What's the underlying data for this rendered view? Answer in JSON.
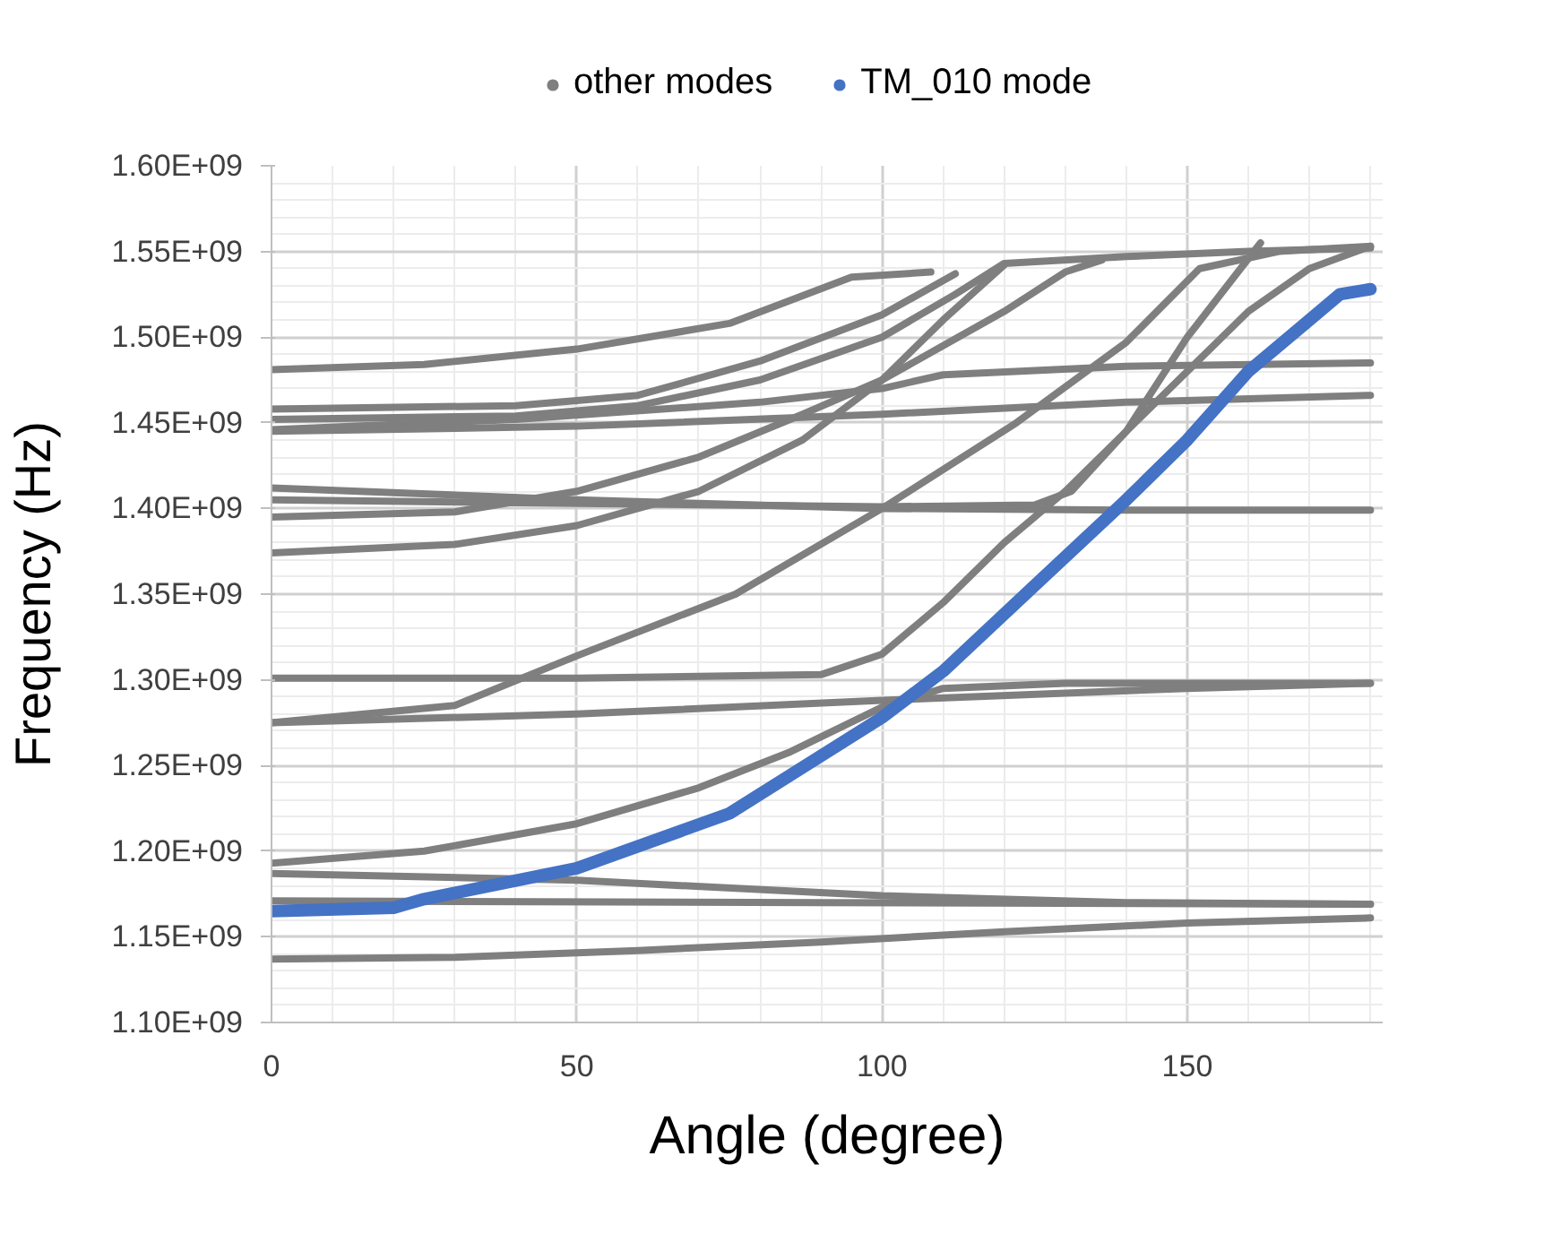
{
  "chart_data": {
    "type": "line",
    "xlabel": "Angle (degree)",
    "ylabel": "Frequency (Hz)",
    "legend": "top",
    "grid": true,
    "xlim": [
      0,
      182
    ],
    "xticks": [
      0,
      50,
      100,
      150
    ],
    "ylim": [
      1100000000,
      1600000000
    ],
    "yticks": [
      {
        "value": 1100000000,
        "label": "1.10E+09"
      },
      {
        "value": 1150000000,
        "label": "1.15E+09"
      },
      {
        "value": 1200000000,
        "label": "1.20E+09"
      },
      {
        "value": 1250000000,
        "label": "1.25E+09"
      },
      {
        "value": 1300000000,
        "label": "1.30E+09"
      },
      {
        "value": 1350000000,
        "label": "1.35E+09"
      },
      {
        "value": 1400000000,
        "label": "1.40E+09"
      },
      {
        "value": 1450000000,
        "label": "1.45E+09"
      },
      {
        "value": 1500000000,
        "label": "1.50E+09"
      },
      {
        "value": 1550000000,
        "label": "1.55E+09"
      },
      {
        "value": 1600000000,
        "label": "1.60E+09"
      }
    ],
    "series": [
      {
        "name": "other modes",
        "color": "#7f7f7f",
        "x": [
          0,
          25,
          50,
          75,
          95,
          108
        ],
        "values": [
          1481000000,
          1484000000,
          1493000000,
          1508000000,
          1535000000,
          1538000000
        ]
      },
      {
        "color": "#7f7f7f",
        "x": [
          0,
          40,
          60,
          80,
          100,
          112
        ],
        "values": [
          1458000000,
          1460000000,
          1466000000,
          1486000000,
          1513000000,
          1537000000
        ]
      },
      {
        "color": "#7f7f7f",
        "x": [
          0,
          40,
          60,
          80,
          100,
          112,
          120,
          140,
          160,
          180
        ],
        "values": [
          1452000000,
          1454000000,
          1460000000,
          1475000000,
          1500000000,
          1525000000,
          1543000000,
          1547000000,
          1550000000,
          1552000000
        ]
      },
      {
        "color": "#7f7f7f",
        "x": [
          0,
          40,
          80,
          100,
          110,
          140,
          180
        ],
        "values": [
          1446000000,
          1452000000,
          1462000000,
          1470000000,
          1478000000,
          1483000000,
          1485000000
        ]
      },
      {
        "color": "#7f7f7f",
        "x": [
          0,
          50,
          100,
          140,
          180
        ],
        "values": [
          1445000000,
          1448000000,
          1455000000,
          1462000000,
          1466000000
        ]
      },
      {
        "color": "#7f7f7f",
        "x": [
          0,
          30,
          50,
          70,
          87,
          100,
          110,
          120
        ],
        "values": [
          1374000000,
          1379000000,
          1390000000,
          1410000000,
          1440000000,
          1475000000,
          1510000000,
          1542000000
        ]
      },
      {
        "color": "#7f7f7f",
        "x": [
          0,
          30,
          50,
          70,
          87,
          100,
          110,
          120,
          130,
          136
        ],
        "values": [
          1395000000,
          1398000000,
          1410000000,
          1430000000,
          1455000000,
          1475000000,
          1495000000,
          1515000000,
          1538000000,
          1545000000
        ]
      },
      {
        "color": "#7f7f7f",
        "x": [
          0,
          50,
          100,
          125,
          131,
          140,
          150,
          162
        ],
        "values": [
          1405000000,
          1403000000,
          1401000000,
          1402000000,
          1410000000,
          1445000000,
          1500000000,
          1555000000
        ]
      },
      {
        "color": "#7f7f7f",
        "x": [
          0,
          50,
          100,
          140,
          180
        ],
        "values": [
          1412000000,
          1405000000,
          1400000000,
          1399000000,
          1399000000
        ]
      },
      {
        "color": "#7f7f7f",
        "x": [
          0,
          50,
          90,
          100,
          110,
          120,
          130,
          140,
          150,
          160,
          170,
          180
        ],
        "values": [
          1301000000,
          1301000000,
          1303000000,
          1315000000,
          1345000000,
          1380000000,
          1410000000,
          1445000000,
          1480000000,
          1515000000,
          1540000000,
          1553000000
        ]
      },
      {
        "color": "#7f7f7f",
        "x": [
          0,
          30,
          50,
          76,
          100,
          122,
          140,
          152,
          165,
          180
        ],
        "values": [
          1275000000,
          1285000000,
          1314000000,
          1350000000,
          1400000000,
          1450000000,
          1497000000,
          1540000000,
          1550000000,
          1553000000
        ]
      },
      {
        "color": "#7f7f7f",
        "x": [
          0,
          50,
          100,
          150,
          180
        ],
        "values": [
          1275000000,
          1280000000,
          1288000000,
          1295000000,
          1298000000
        ]
      },
      {
        "color": "#7f7f7f",
        "x": [
          0,
          25,
          50,
          70,
          85,
          100,
          110,
          130,
          180
        ],
        "values": [
          1193000000,
          1200000000,
          1216000000,
          1237000000,
          1258000000,
          1284000000,
          1295000000,
          1298000000,
          1298000000
        ]
      },
      {
        "color": "#7f7f7f",
        "x": [
          0,
          50,
          100,
          140,
          180
        ],
        "values": [
          1187000000,
          1183000000,
          1174000000,
          1170000000,
          1169000000
        ]
      },
      {
        "color": "#7f7f7f",
        "x": [
          0,
          90,
          180
        ],
        "values": [
          1171000000,
          1170000000,
          1169000000
        ]
      },
      {
        "color": "#7f7f7f",
        "x": [
          0,
          30,
          60,
          90,
          120,
          150,
          180
        ],
        "values": [
          1137000000,
          1138000000,
          1142000000,
          1147000000,
          1153000000,
          1158000000,
          1161000000
        ]
      },
      {
        "name": "TM_010 mode",
        "color": "#4472c4",
        "x": [
          0,
          20,
          25,
          50,
          75,
          100,
          110,
          125,
          140,
          150,
          160,
          170,
          175,
          180
        ],
        "values": [
          1165000000,
          1167000000,
          1172000000,
          1190000000,
          1222000000,
          1278000000,
          1305000000,
          1355000000,
          1405000000,
          1440000000,
          1480000000,
          1510000000,
          1525000000,
          1528000000
        ]
      }
    ]
  }
}
